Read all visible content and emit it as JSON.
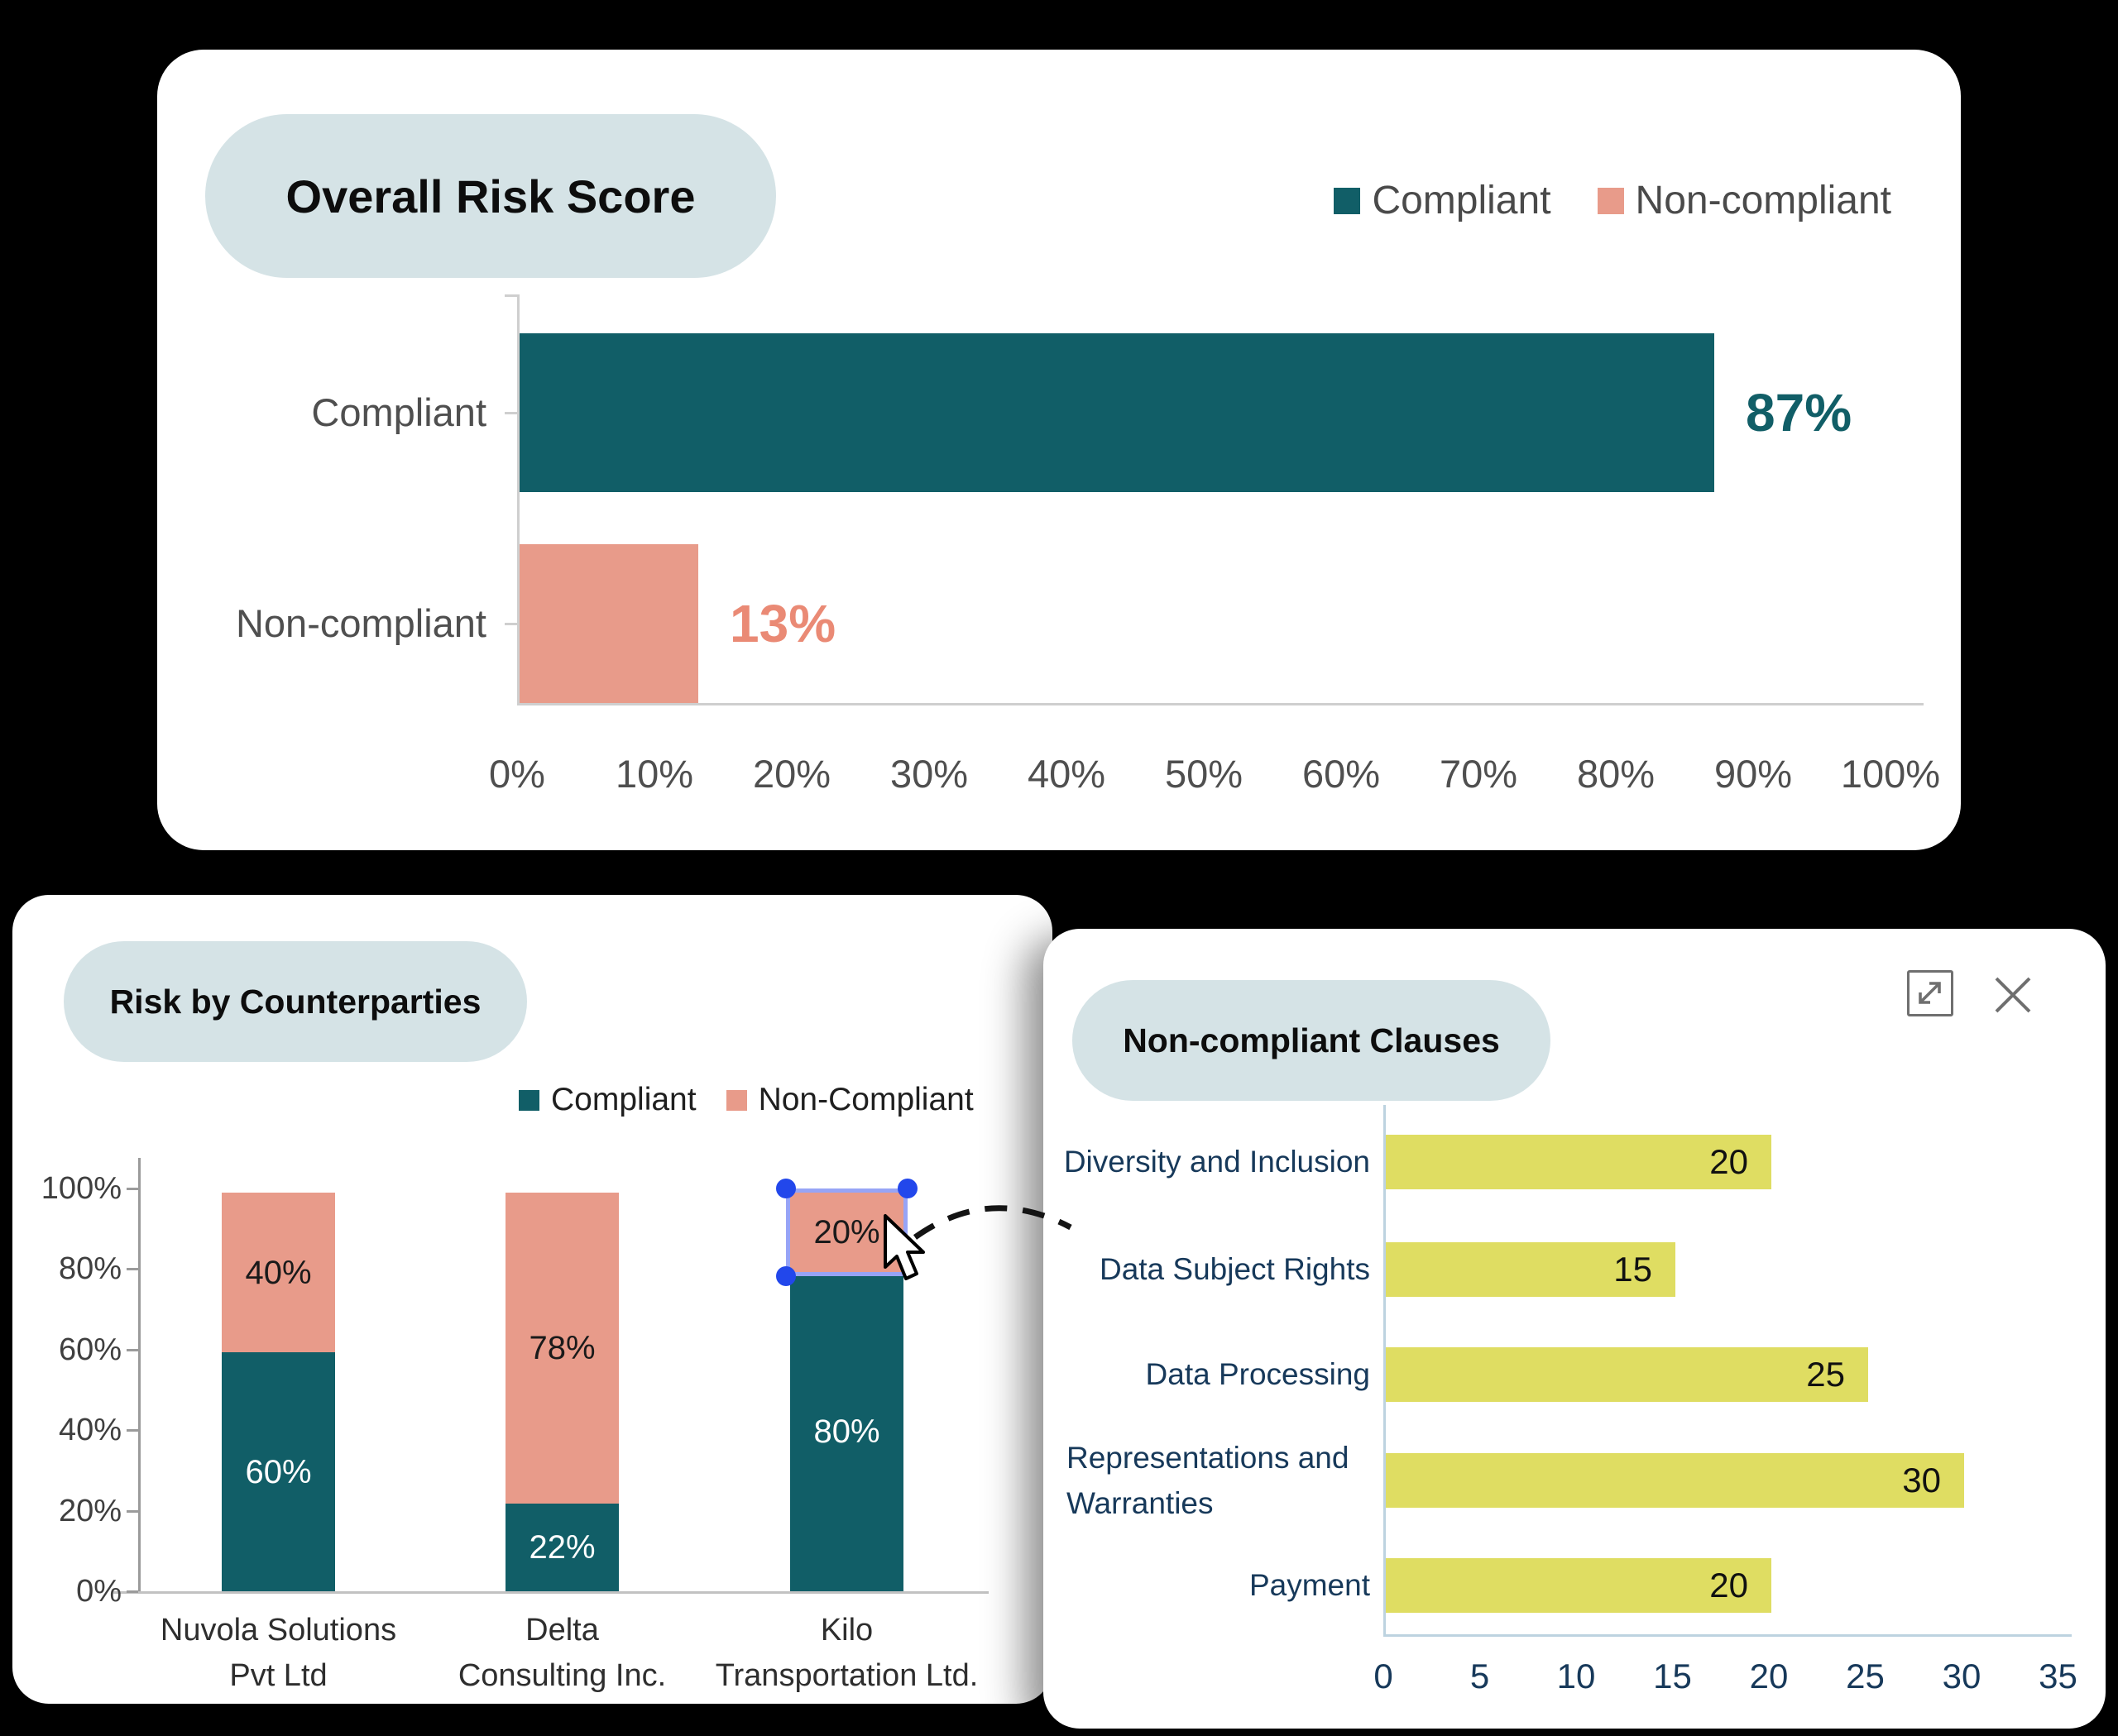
{
  "page_bg": "#000000",
  "colors": {
    "card_bg": "#FFFFFF",
    "pill_bg": "#D5E3E6",
    "teal": "#115E67",
    "salmon": "#E89B8A",
    "salmon_value_text": "#EA8A75",
    "teal_value_text": "#115E67",
    "yellow": "#DFDD62",
    "navy": "#17395A",
    "axis_gray": "#CFCFCF",
    "axis_gray_dark": "#9B9B9B",
    "axis_blue_gray": "#BDD3E0",
    "selection_border": "#97A4F6",
    "selection_handle": "#2247EB",
    "dark_label": "#1A1A1A",
    "white_label": "#FFFFFF"
  },
  "overall_risk_card": {
    "title": "Overall Risk Score",
    "legend": [
      {
        "label": "Compliant",
        "color": "#115E67"
      },
      {
        "label": "Non-compliant",
        "color": "#E89B8A"
      }
    ],
    "rows": [
      {
        "category": "Compliant",
        "value": 87,
        "value_label": "87%"
      },
      {
        "category": "Non-compliant",
        "value": 13,
        "value_label": "13%"
      }
    ],
    "x_ticks": [
      "0%",
      "10%",
      "20%",
      "30%",
      "40%",
      "50%",
      "60%",
      "70%",
      "80%",
      "90%",
      "100%"
    ]
  },
  "counterparties_card": {
    "title": "Risk by Counterparties",
    "legend": [
      {
        "label": "Compliant",
        "color": "#115E67"
      },
      {
        "label": "Non-Compliant",
        "color": "#E89B8A"
      }
    ],
    "y_ticks": [
      "100%",
      "80%",
      "60%",
      "40%",
      "20%",
      "0%"
    ],
    "columns": [
      {
        "name_lines": [
          "Nuvola Solutions",
          "Pvt Ltd"
        ],
        "compliant_pct": 60,
        "compliant_label": "60%",
        "non_compliant_pct": 40,
        "non_compliant_label": "40%",
        "selected": false
      },
      {
        "name_lines": [
          "Delta",
          "Consulting Inc."
        ],
        "compliant_pct": 22,
        "compliant_label": "22%",
        "non_compliant_pct": 78,
        "non_compliant_label": "78%",
        "selected": false
      },
      {
        "name_lines": [
          "Kilo",
          "Transportation Ltd."
        ],
        "compliant_pct": 80,
        "compliant_label": "80%",
        "non_compliant_pct": 20,
        "non_compliant_label": "20%",
        "selected": true
      }
    ]
  },
  "clauses_card": {
    "title": "Non-compliant Clauses",
    "icons": [
      {
        "name": "expand-icon"
      },
      {
        "name": "close-icon"
      }
    ],
    "rows": [
      {
        "label_lines": [
          "Diversity and Inclusion"
        ],
        "value": 20,
        "value_label": "20"
      },
      {
        "label_lines": [
          "Data Subject Rights"
        ],
        "value": 15,
        "value_label": "15"
      },
      {
        "label_lines": [
          "Data Processing"
        ],
        "value": 25,
        "value_label": "25"
      },
      {
        "label_lines": [
          "Representations and",
          "Warranties"
        ],
        "value": 30,
        "value_label": "30"
      },
      {
        "label_lines": [
          "Payment"
        ],
        "value": 20,
        "value_label": "20"
      }
    ],
    "x_ticks": [
      "0",
      "5",
      "10",
      "15",
      "20",
      "25",
      "30",
      "35"
    ]
  },
  "chart_data": [
    {
      "type": "bar",
      "orientation": "horizontal",
      "title": "Overall Risk Score",
      "categories": [
        "Compliant",
        "Non-compliant"
      ],
      "values": [
        87,
        13
      ],
      "value_labels": [
        "87%",
        "13%"
      ],
      "xlabel": "",
      "ylabel": "",
      "xlim": [
        0,
        100
      ],
      "x_ticks": [
        0,
        10,
        20,
        30,
        40,
        50,
        60,
        70,
        80,
        90,
        100
      ],
      "legend": [
        "Compliant",
        "Non-compliant"
      ],
      "legend_position": "top-right",
      "grid": false,
      "colors": [
        "#115E67",
        "#E89B8A"
      ]
    },
    {
      "type": "bar",
      "subtype": "stacked-column",
      "title": "Risk by Counterparties",
      "categories": [
        "Nuvola Solutions Pvt Ltd",
        "Delta Consulting Inc.",
        "Kilo Transportation Ltd."
      ],
      "series": [
        {
          "name": "Compliant",
          "values": [
            60,
            22,
            80
          ],
          "color": "#115E67"
        },
        {
          "name": "Non-Compliant",
          "values": [
            40,
            78,
            20
          ],
          "color": "#E89B8A"
        }
      ],
      "ylim": [
        0,
        100
      ],
      "y_ticks": [
        0,
        20,
        40,
        60,
        80,
        100
      ],
      "legend_position": "top-right",
      "grid": false,
      "annotation": "Non-Compliant 20% segment of Kilo Transportation Ltd. is selected with drag handles; dashed connector points to Non-compliant Clauses card"
    },
    {
      "type": "bar",
      "orientation": "horizontal",
      "title": "Non-compliant Clauses",
      "categories": [
        "Diversity and Inclusion",
        "Data Subject Rights",
        "Data Processing",
        "Representations and Warranties",
        "Payment"
      ],
      "values": [
        20,
        15,
        25,
        30,
        20
      ],
      "xlim": [
        0,
        35
      ],
      "x_ticks": [
        0,
        5,
        10,
        15,
        20,
        25,
        30,
        35
      ],
      "legend_position": "none",
      "grid": false,
      "colors": [
        "#DFDD62"
      ]
    }
  ]
}
